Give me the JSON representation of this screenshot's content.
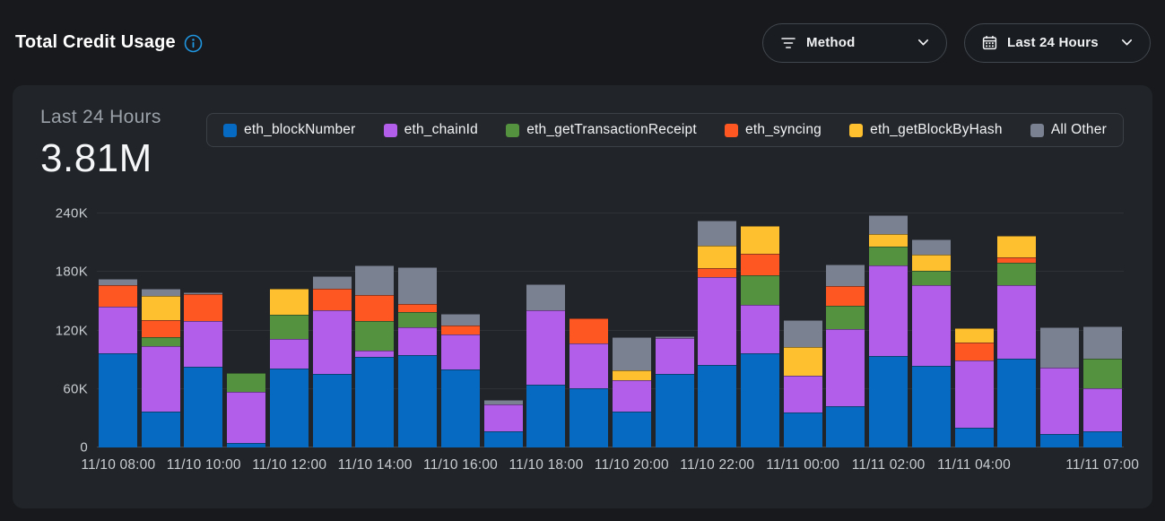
{
  "header": {
    "title": "Total Credit Usage",
    "filters": {
      "method": {
        "label": "Method"
      },
      "period": {
        "label": "Last 24 Hours"
      }
    }
  },
  "panel": {
    "summary_label": "Last 24 Hours",
    "summary_total": "3.81M"
  },
  "colors": {
    "page_bg": "#17191c",
    "panel_bg": "#212428",
    "accent_info": "#2095e0",
    "gridline": "#2e3237",
    "axis_text": "#c9ced3"
  },
  "chart_data": {
    "type": "bar",
    "stacked": true,
    "title": "Total Credit Usage - Last 24 Hours",
    "unit": "K credits",
    "y_max": 240,
    "ylim": [
      0,
      240
    ],
    "grid": true,
    "legend_position": "top",
    "bars_count": 24,
    "categories": [
      "11/10 08:00",
      "11/10 09:00",
      "11/10 10:00",
      "11/10 11:00",
      "11/10 12:00",
      "11/10 13:00",
      "11/10 14:00",
      "11/10 15:00",
      "11/10 16:00",
      "11/10 17:00",
      "11/10 18:00",
      "11/10 19:00",
      "11/10 20:00",
      "11/10 21:00",
      "11/10 22:00",
      "11/10 23:00",
      "11/11 00:00",
      "11/11 01:00",
      "11/11 02:00",
      "11/11 03:00",
      "11/11 04:00",
      "11/11 05:00",
      "11/11 06:00",
      "11/11 07:00"
    ],
    "y_ticks": [
      {
        "label": "0",
        "value": 0
      },
      {
        "label": "60K",
        "value": 60
      },
      {
        "label": "120K",
        "value": 120
      },
      {
        "label": "180K",
        "value": 180
      },
      {
        "label": "240K",
        "value": 240
      }
    ],
    "x_ticks": [
      {
        "label": "11/10 08:00",
        "slot": 0
      },
      {
        "label": "11/10 10:00",
        "slot": 2
      },
      {
        "label": "11/10 12:00",
        "slot": 4
      },
      {
        "label": "11/10 14:00",
        "slot": 6
      },
      {
        "label": "11/10 16:00",
        "slot": 8
      },
      {
        "label": "11/10 18:00",
        "slot": 10
      },
      {
        "label": "11/10 20:00",
        "slot": 12
      },
      {
        "label": "11/10 22:00",
        "slot": 14
      },
      {
        "label": "11/11 00:00",
        "slot": 16
      },
      {
        "label": "11/11 02:00",
        "slot": 18
      },
      {
        "label": "11/11 04:00",
        "slot": 20
      },
      {
        "label": "11/11 07:00",
        "slot": 23
      }
    ],
    "series": [
      {
        "name": "eth_blockNumber",
        "color": "#0669c2",
        "values": [
          97,
          37,
          83,
          5,
          81,
          75,
          93,
          95,
          80,
          17,
          64,
          61,
          37,
          75,
          85,
          97,
          36,
          42,
          94,
          84,
          20,
          91,
          14,
          17
        ]
      },
      {
        "name": "eth_chainId",
        "color": "#b25eeb",
        "values": [
          47,
          67,
          47,
          52,
          30,
          66,
          6,
          28,
          36,
          27,
          77,
          46,
          32,
          37,
          90,
          49,
          38,
          79,
          93,
          82,
          69,
          75,
          68,
          44
        ]
      },
      {
        "name": "eth_getTransactionReceipt",
        "color": "#54923f",
        "values": [
          0,
          9,
          0,
          19,
          25,
          0,
          31,
          16,
          0,
          0,
          0,
          0,
          0,
          0,
          0,
          31,
          0,
          24,
          19,
          15,
          0,
          23,
          0,
          30
        ]
      },
      {
        "name": "eth_syncing",
        "color": "#fe5722",
        "values": [
          22,
          18,
          27,
          0,
          0,
          22,
          26,
          8,
          9,
          0,
          0,
          25,
          0,
          0,
          9,
          22,
          0,
          21,
          0,
          0,
          19,
          6,
          0,
          0
        ]
      },
      {
        "name": "eth_getBlockByHash",
        "color": "#fec02e",
        "values": [
          0,
          24,
          0,
          0,
          27,
          0,
          0,
          0,
          0,
          0,
          0,
          0,
          10,
          0,
          23,
          28,
          29,
          0,
          13,
          17,
          14,
          22,
          0,
          0
        ]
      },
      {
        "name": "All Other",
        "color": "#7a8292",
        "values": [
          7,
          8,
          2,
          0,
          0,
          13,
          31,
          38,
          12,
          5,
          26,
          0,
          34,
          2,
          26,
          0,
          28,
          22,
          19,
          15,
          0,
          0,
          41,
          33
        ]
      }
    ]
  }
}
